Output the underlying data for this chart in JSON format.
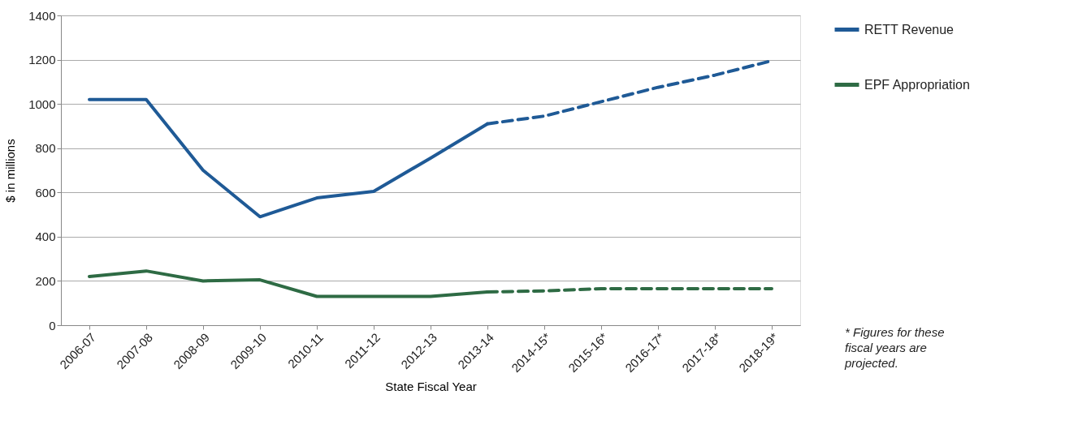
{
  "chart_data": {
    "type": "line",
    "xlabel": "State Fiscal Year",
    "ylabel": "$ in millions",
    "categories": [
      "2006-07",
      "2007-08",
      "2008-09",
      "2009-10",
      "2010-11",
      "2011-12",
      "2012-13",
      "2013-14",
      "2014-15*",
      "2015-16*",
      "2016-17*",
      "2017-18*",
      "2018-19*"
    ],
    "series": [
      {
        "name": "RETT Revenue",
        "color": "#1f5a96",
        "line_style": "solid",
        "values": [
          1020,
          1020,
          700,
          490,
          575,
          605,
          755,
          910,
          null,
          null,
          null,
          null,
          null
        ]
      },
      {
        "color": "#1f5a96",
        "line_style": "dashed",
        "values": [
          null,
          null,
          null,
          null,
          null,
          null,
          null,
          910,
          945,
          1010,
          1075,
          1130,
          1195
        ]
      },
      {
        "name": "EPF Appropriation",
        "color": "#2e6b44",
        "line_style": "solid",
        "values": [
          220,
          245,
          200,
          205,
          130,
          130,
          130,
          150,
          null,
          null,
          null,
          null,
          null
        ]
      },
      {
        "color": "#2e6b44",
        "line_style": "dashed",
        "values": [
          null,
          null,
          null,
          null,
          null,
          null,
          null,
          150,
          155,
          165,
          165,
          165,
          165
        ]
      }
    ],
    "ylim": [
      0,
      1400
    ],
    "yticks": [
      0,
      200,
      400,
      600,
      800,
      1000,
      1200,
      1400
    ],
    "grid": "y",
    "legend": "right",
    "marker": "none",
    "annotations": [
      "* Figures for these fiscal years are projected."
    ]
  }
}
